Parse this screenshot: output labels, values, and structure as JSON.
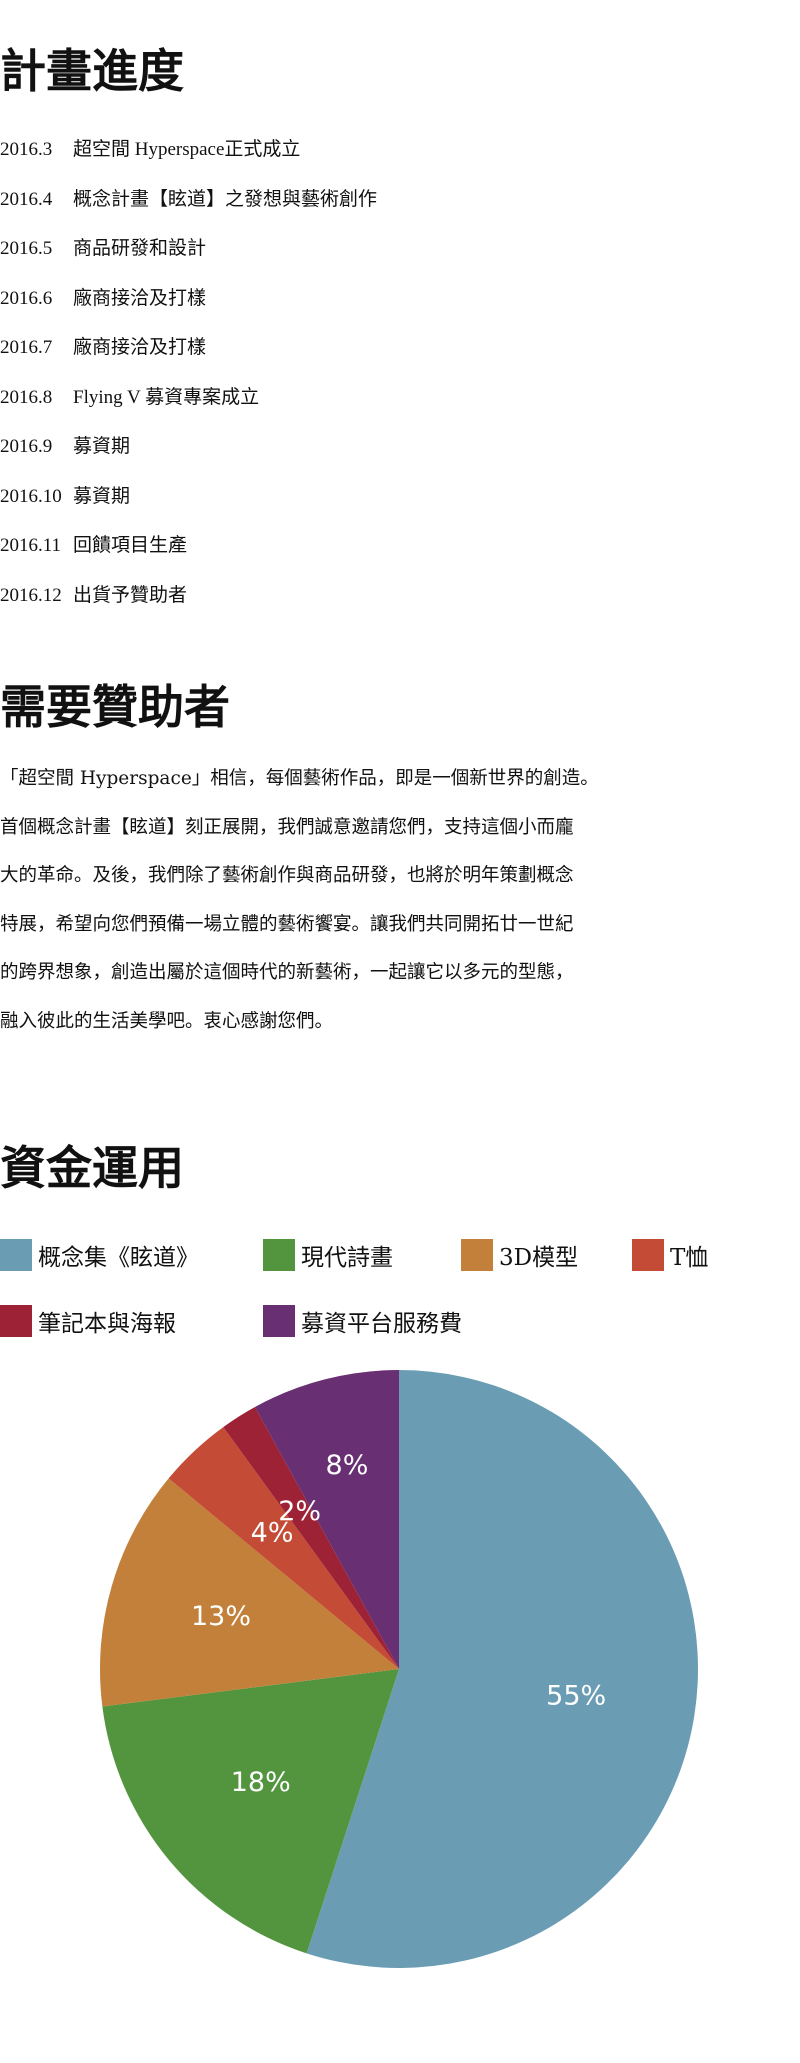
{
  "schedule": {
    "title": "計畫進度",
    "items": [
      {
        "date": "2016.3",
        "text": "超空間  Hyperspace正式成立"
      },
      {
        "date": "2016.4",
        "text": "概念計畫【眩道】之發想與藝術創作"
      },
      {
        "date": "2016.5",
        "text": "商品研發和設計"
      },
      {
        "date": "2016.6",
        "text": "廠商接洽及打樣"
      },
      {
        "date": "2016.7",
        "text": "廠商接洽及打樣"
      },
      {
        "date": "2016.8",
        "text": "Flying V 募資專案成立"
      },
      {
        "date": "2016.9",
        "text": "募資期"
      },
      {
        "date": "2016.10",
        "text": "募資期"
      },
      {
        "date": "2016.11",
        "text": "回饋項目生產"
      },
      {
        "date": "2016.12",
        "text": "出貨予贊助者"
      }
    ]
  },
  "sponsors": {
    "title": "需要贊助者",
    "lines": [
      "「超空間 Hyperspace」相信，每個藝術作品，即是一個新世界的創造。",
      "首個概念計畫【眩道】刻正展開，我們誠意邀請您們，支持這個小而龐",
      "大的革命。及後，我們除了藝術創作與商品研發，也將於明年策劃概念",
      "特展，希望向您們預備一場立體的藝術饗宴。讓我們共同開拓廿一世紀",
      "的跨界想象，創造出屬於這個時代的新藝術，一起讓它以多元的型態，",
      "融入彼此的生活美學吧。衷心感謝您們。"
    ]
  },
  "funds": {
    "title": "資金運用"
  },
  "chart_data": {
    "type": "pie",
    "start": "top, clockwise",
    "legend_position": "top",
    "categories": [
      "概念集《眩道》",
      "現代詩畫",
      "3D模型",
      "T恤",
      "筆記本與海報",
      "募資平台服務費"
    ],
    "values": [
      55,
      18,
      13,
      4,
      2,
      8
    ],
    "labels": [
      "55%",
      "18%",
      "13%",
      "4%",
      "2%",
      "8%"
    ],
    "colors": [
      "#6a9db3",
      "#52953e",
      "#c2803a",
      "#c44c36",
      "#9e2236",
      "#682f72"
    ]
  }
}
